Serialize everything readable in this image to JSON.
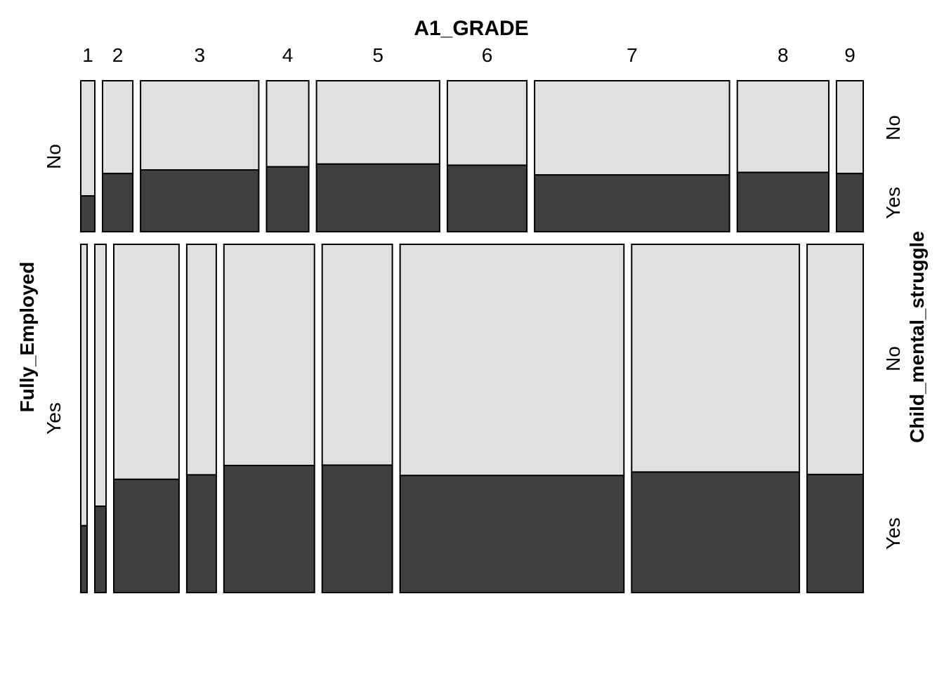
{
  "chart_data": {
    "type": "mosaic",
    "title": "A1_GRADE",
    "x_variable": "A1_GRADE",
    "row_variable": "Fully_Employed",
    "fill_variable": "Child_mental_struggle",
    "categories": [
      "1",
      "2",
      "3",
      "4",
      "5",
      "6",
      "7",
      "8",
      "9"
    ],
    "row_levels": [
      "No",
      "Yes"
    ],
    "fill_levels": [
      "No",
      "Yes"
    ],
    "fill_colors": {
      "No": "#e0e0e0",
      "Yes": "#404040"
    },
    "right_labels": {
      "No_No": "No",
      "No_Yes": "Yes",
      "Yes_No": "No",
      "Yes_Yes": "Yes"
    },
    "cells": {
      "No": {
        "widths": [
          20,
          43,
          168,
          60,
          175,
          113,
          277,
          130,
          38
        ],
        "yes_share": [
          0.237,
          0.385,
          0.409,
          0.43,
          0.448,
          0.44,
          0.376,
          0.393,
          0.385
        ]
      },
      "Yes": {
        "widths": [
          9,
          16,
          93,
          42,
          129,
          100,
          319,
          239,
          80
        ],
        "yes_share": [
          0.192,
          0.248,
          0.325,
          0.338,
          0.365,
          0.366,
          0.336,
          0.346,
          0.339
        ]
      }
    }
  }
}
